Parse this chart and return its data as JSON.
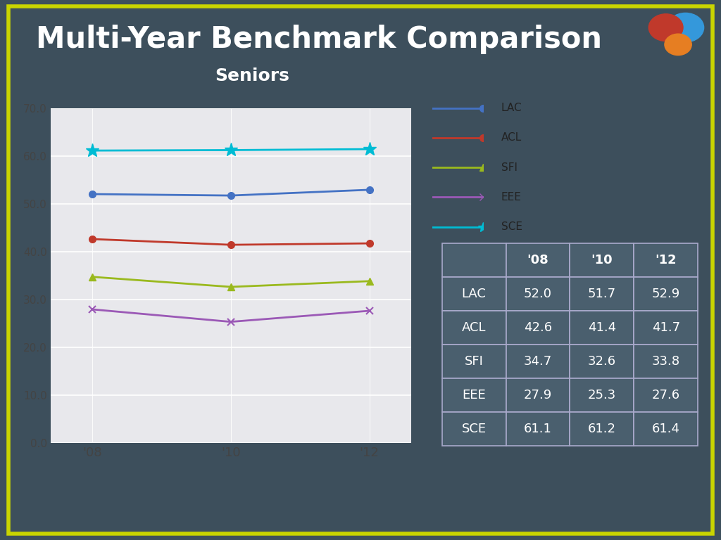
{
  "title": "Multi-Year Benchmark Comparison",
  "subtitle": "Seniors",
  "background_color": "#3d4f5c",
  "chart_bg_color": "#e8e8ec",
  "border_color": "#c8d400",
  "years": [
    "'08",
    "'10",
    "'12"
  ],
  "series": [
    {
      "name": "LAC",
      "values": [
        52.0,
        51.7,
        52.9
      ],
      "color": "#4472c4",
      "marker": "o"
    },
    {
      "name": "ACL",
      "values": [
        42.6,
        41.4,
        41.7
      ],
      "color": "#c0392b",
      "marker": "o"
    },
    {
      "name": "SFI",
      "values": [
        34.7,
        32.6,
        33.8
      ],
      "color": "#9ab91e",
      "marker": "^"
    },
    {
      "name": "EEE",
      "values": [
        27.9,
        25.3,
        27.6
      ],
      "color": "#9b59b6",
      "marker": "x"
    },
    {
      "name": "SCE",
      "values": [
        61.1,
        61.2,
        61.4
      ],
      "color": "#00bcd4",
      "marker": "*"
    }
  ],
  "ylim": [
    0,
    70
  ],
  "yticks": [
    0.0,
    10.0,
    20.0,
    30.0,
    40.0,
    50.0,
    60.0,
    70.0
  ],
  "table_header": [
    "",
    "'08",
    "'10",
    "'12"
  ],
  "table_rows": [
    [
      "LAC",
      "52.0",
      "51.7",
      "52.9"
    ],
    [
      "ACL",
      "42.6",
      "41.4",
      "41.7"
    ],
    [
      "SFI",
      "34.7",
      "32.6",
      "33.8"
    ],
    [
      "EEE",
      "27.9",
      "25.3",
      "27.6"
    ],
    [
      "SCE",
      "61.1",
      "61.2",
      "61.4"
    ]
  ],
  "title_color": "#ffffff",
  "title_fontsize": 30,
  "subtitle_fontsize": 18,
  "tick_color": "#444444",
  "table_text_color": "#ffffff",
  "table_border_color": "#aaaacc",
  "table_cell_color": "#4a5f6e",
  "legend_text_color": "#222222"
}
